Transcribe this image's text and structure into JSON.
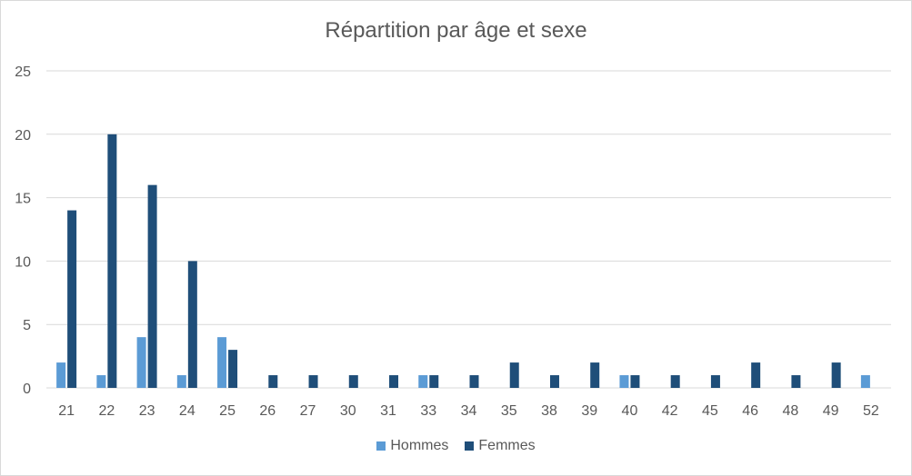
{
  "chart_data": {
    "type": "bar",
    "title": "Répartition par âge et sexe",
    "xlabel": "",
    "ylabel": "",
    "ylim": [
      0,
      25
    ],
    "yticks": [
      0,
      5,
      10,
      15,
      20,
      25
    ],
    "grid": true,
    "legend_position": "bottom",
    "categories": [
      "21",
      "22",
      "23",
      "24",
      "25",
      "26",
      "27",
      "30",
      "31",
      "33",
      "34",
      "35",
      "38",
      "39",
      "40",
      "42",
      "45",
      "46",
      "48",
      "49",
      "52"
    ],
    "series": [
      {
        "name": "Hommes",
        "color": "#5b9bd5",
        "values": [
          2,
          1,
          4,
          1,
          4,
          0,
          0,
          0,
          0,
          1,
          0,
          0,
          0,
          0,
          1,
          0,
          0,
          0,
          0,
          0,
          1
        ]
      },
      {
        "name": "Femmes",
        "color": "#1f4e79",
        "values": [
          14,
          20,
          16,
          10,
          3,
          1,
          1,
          1,
          1,
          1,
          1,
          2,
          1,
          2,
          1,
          1,
          1,
          2,
          1,
          2,
          0
        ]
      }
    ]
  }
}
